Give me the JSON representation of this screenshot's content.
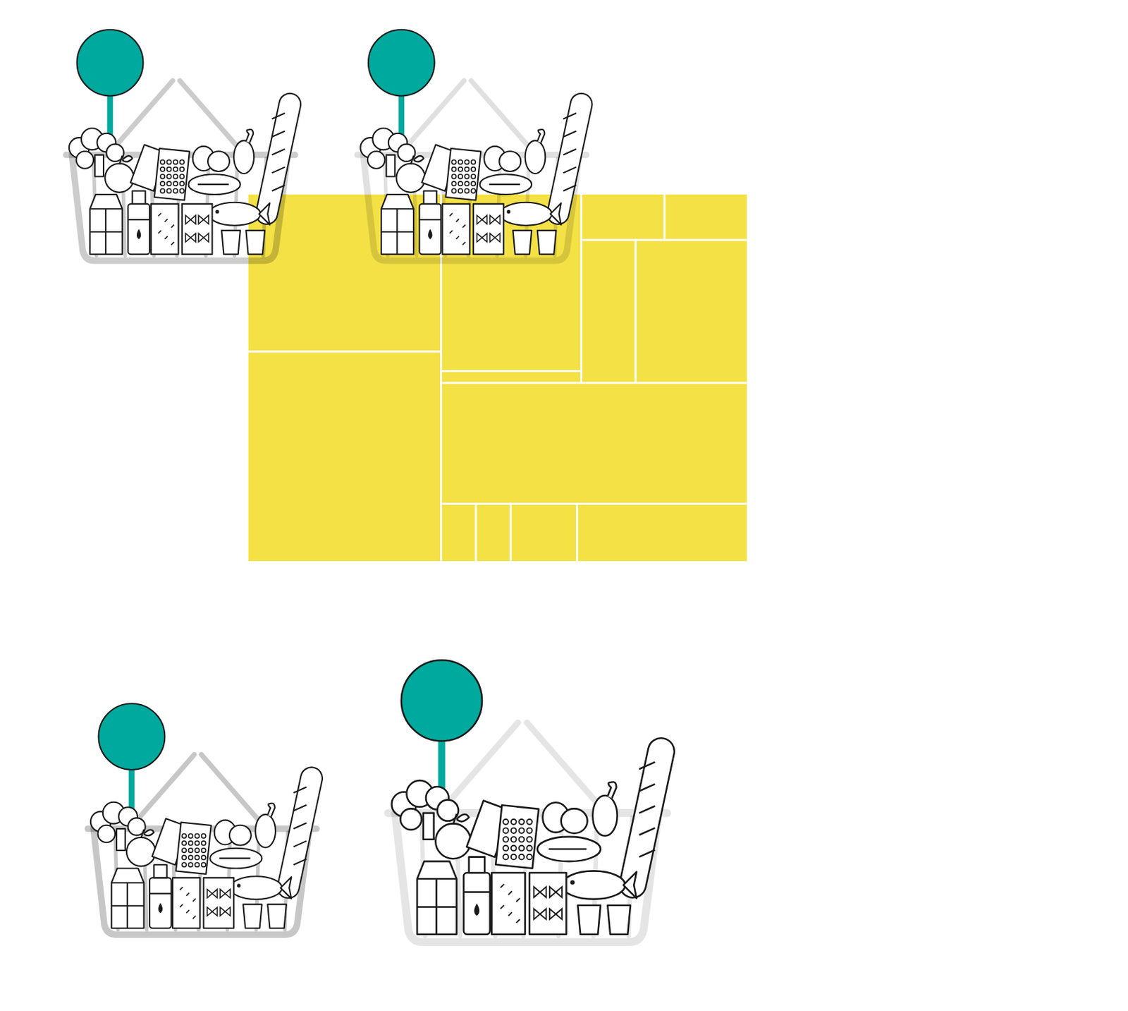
{
  "chart_data": {
    "type": "treemap",
    "color": "#f4e145",
    "tick_labels": false,
    "children": [
      {
        "children": [
          {
            "value": 16.6
          },
          {
            "value": 22.1
          }
        ]
      },
      {
        "children": [
          {
            "children": [
              {
                "children": [
                  {
                    "value": 13.5
                  },
                  {
                    "value": 0.9
                  }
                ]
              },
              {
                "children": [
                  {
                    "children": [
                      {
                        "value": 2.1
                      },
                      {
                        "value": 2.1
                      }
                    ]
                  },
                  {
                    "children": [
                      {
                        "value": 4.2
                      },
                      {
                        "value": 8.7
                      }
                    ]
                  }
                ]
              }
            ]
          },
          {
            "value": 20.1
          },
          {
            "children": [
              {
                "value": 1.1
              },
              {
                "value": 1.1
              },
              {
                "value": 2.1
              },
              {
                "value": 5.4
              }
            ]
          }
        ]
      }
    ]
  }
}
